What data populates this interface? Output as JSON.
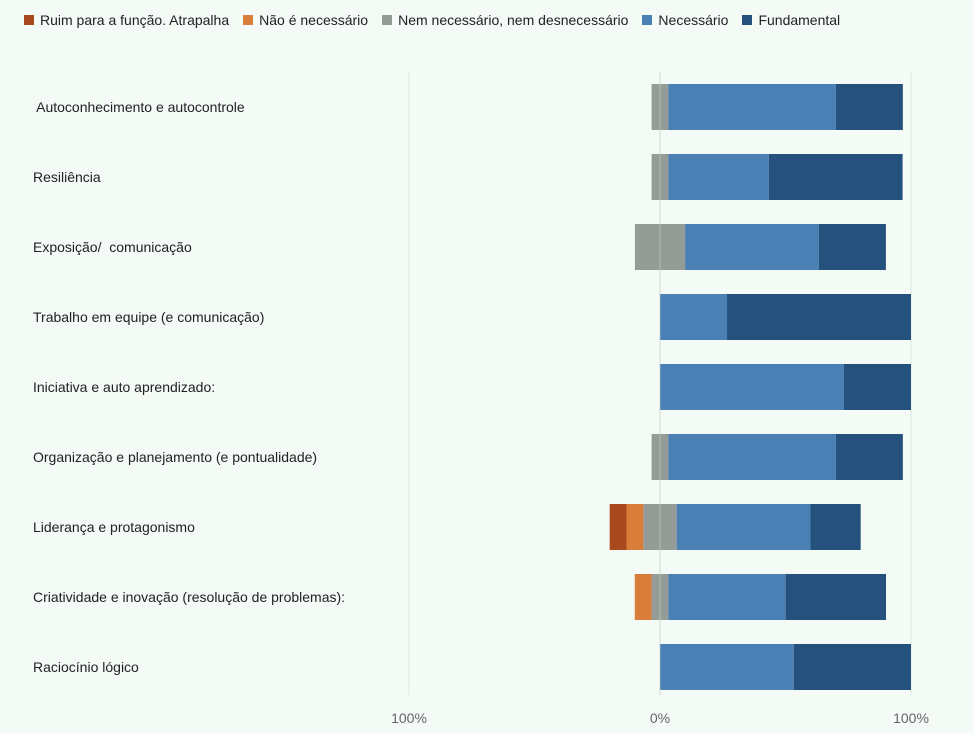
{
  "chart_data": {
    "type": "bar",
    "orientation": "horizontal",
    "stacking": "diverging",
    "title": "",
    "xlabel": "",
    "ylabel": "",
    "xlim": [
      -100,
      100
    ],
    "x_tick_labels": [
      "100%",
      "0%",
      "100%"
    ],
    "legend_position": "top",
    "categories": [
      " Autoconhecimento e autocontrole",
      "Resiliência",
      "Exposição/  comunicação",
      "Trabalho em equipe (e comunicação)",
      "Iniciativa e auto aprendizado:",
      "Organização e planejamento (e pontualidade)",
      "Liderança e protagonismo",
      "Criatividade e inovação (resolução de problemas):",
      "Raciocínio lógico"
    ],
    "series": [
      {
        "name": "Ruim para a função. Atrapalha",
        "color": "#a9491e",
        "values": [
          0,
          0,
          0,
          0,
          0,
          0,
          6.7,
          0,
          0
        ]
      },
      {
        "name": "Não é necessário",
        "color": "#d97d3a",
        "values": [
          0,
          0,
          0,
          0,
          0,
          0,
          6.7,
          6.7,
          0
        ]
      },
      {
        "name": "Nem necessário, nem desnecessário",
        "color": "#959c97",
        "values": [
          6.7,
          6.7,
          20,
          0,
          0,
          6.7,
          13.3,
          6.7,
          0
        ]
      },
      {
        "name": "Necessário",
        "color": "#4a80b3",
        "values": [
          66.7,
          40,
          53.3,
          26.7,
          73.3,
          66.7,
          53.3,
          46.7,
          53.3
        ]
      },
      {
        "name": "Fundamental",
        "color": "#24527d",
        "values": [
          26.7,
          53.3,
          26.7,
          73.3,
          26.7,
          26.7,
          20,
          40,
          46.7
        ]
      }
    ]
  }
}
